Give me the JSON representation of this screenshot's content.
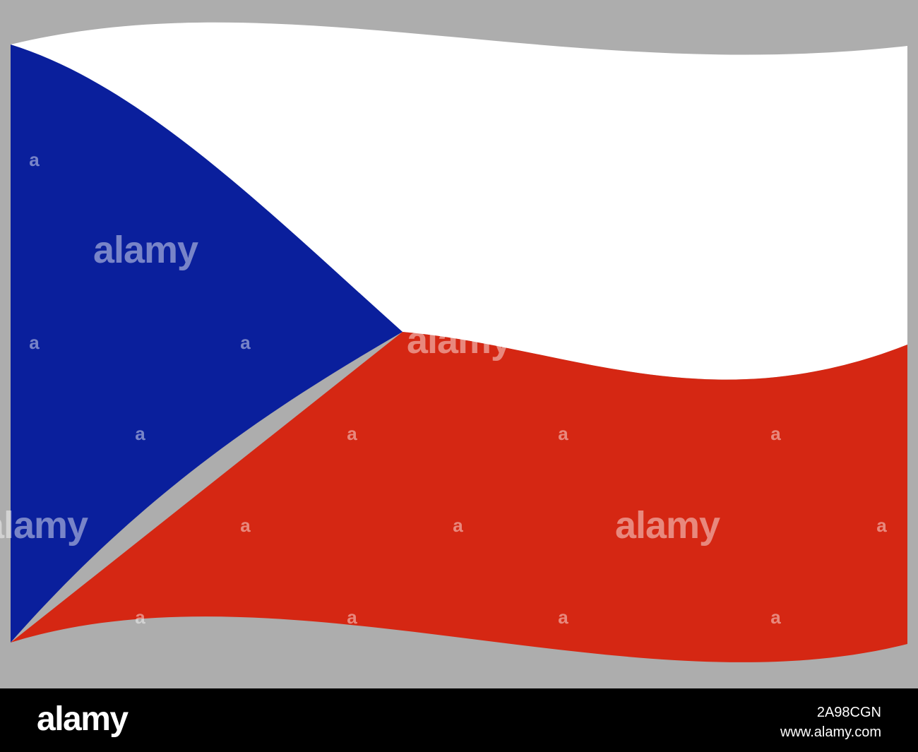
{
  "flag": {
    "colors": {
      "background": "#adadad",
      "blue": "#0a1f9c",
      "white": "#ffffff",
      "red": "#d52713"
    }
  },
  "watermark": {
    "brand": "alamy",
    "mark": "a"
  },
  "footer": {
    "logo": "alamy",
    "image_id": "2A98CGN",
    "url": "www.alamy.com"
  }
}
